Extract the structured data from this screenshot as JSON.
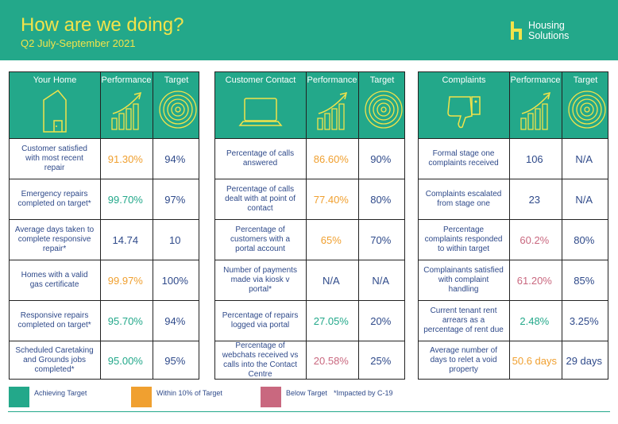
{
  "header": {
    "title": "How are we doing?",
    "subtitle": "Q2 July-September 2021",
    "logo_line1": "Housing",
    "logo_line2": "Solutions"
  },
  "colors": {
    "teal": "#23a88a",
    "amber": "#f0a030",
    "pink": "#c9687f",
    "yellow": "#f2e34a",
    "navy": "#2f4a8a"
  },
  "panels": [
    {
      "title": "Your Home",
      "perf_label": "Performance",
      "target_label": "Target",
      "icon": "house-icon",
      "rows": [
        {
          "label": "Customer satisfied with most recent repair",
          "performance": "91.30%",
          "status": "amber",
          "target": "94%"
        },
        {
          "label": "Emergency repairs completed on target*",
          "performance": "99.70%",
          "status": "green",
          "target": "97%"
        },
        {
          "label": "Average days taken to complete responsive repair*",
          "performance": "14.74",
          "status": "navy",
          "target": "10"
        },
        {
          "label": "Homes with a valid gas certificate",
          "performance": "99.97%",
          "status": "amber",
          "target": "100%"
        },
        {
          "label": "Responsive repairs completed on target*",
          "performance": "95.70%",
          "status": "green",
          "target": "94%"
        },
        {
          "label": "Scheduled Caretaking and Grounds jobs completed*",
          "performance": "95.00%",
          "status": "green",
          "target": "95%"
        }
      ]
    },
    {
      "title": "Customer Contact",
      "perf_label": "Performance",
      "target_label": "Target",
      "icon": "laptop-icon",
      "rows": [
        {
          "label": "Percentage of calls answered",
          "performance": "86.60%",
          "status": "amber",
          "target": "90%"
        },
        {
          "label": "Percentage of calls dealt with at point of contact",
          "performance": "77.40%",
          "status": "amber",
          "target": "80%"
        },
        {
          "label": "Percentage of customers with a portal account",
          "performance": "65%",
          "status": "amber",
          "target": "70%"
        },
        {
          "label": "Number of payments made via kiosk v portal*",
          "performance": "N/A",
          "status": "navy",
          "target": "N/A"
        },
        {
          "label": "Percentage of repairs logged via portal",
          "performance": "27.05%",
          "status": "green",
          "target": "20%"
        },
        {
          "label": "Percentage of webchats received vs calls into the Contact Centre",
          "performance": "20.58%",
          "status": "red",
          "target": "25%"
        }
      ]
    },
    {
      "title": "Complaints",
      "perf_label": "Performance",
      "target_label": "Target",
      "icon": "thumbs-down-icon",
      "rows": [
        {
          "label": "Formal stage one complaints received",
          "performance": "106",
          "status": "navy",
          "target": "N/A"
        },
        {
          "label": "Complaints escalated from stage one",
          "performance": "23",
          "status": "navy",
          "target": "N/A"
        },
        {
          "label": "Percentage complaints responded to within target",
          "performance": "60.2%",
          "status": "red",
          "target": "80%"
        },
        {
          "label": "Complainants satisfied with complaint handling",
          "performance": "61.20%",
          "status": "red",
          "target": "85%"
        },
        {
          "label": "Current tenant rent arrears as a percentage of rent due",
          "performance": "2.48%",
          "status": "green",
          "target": "3.25%"
        },
        {
          "label": "Average number of days to relet a void property",
          "performance": "50.6 days",
          "status": "amber",
          "target": "29 days"
        }
      ]
    }
  ],
  "legend": {
    "achieving": "Achieving Target",
    "within": "Within 10% of Target",
    "below": "Below Target",
    "impacted": "*Impacted by C-19"
  }
}
